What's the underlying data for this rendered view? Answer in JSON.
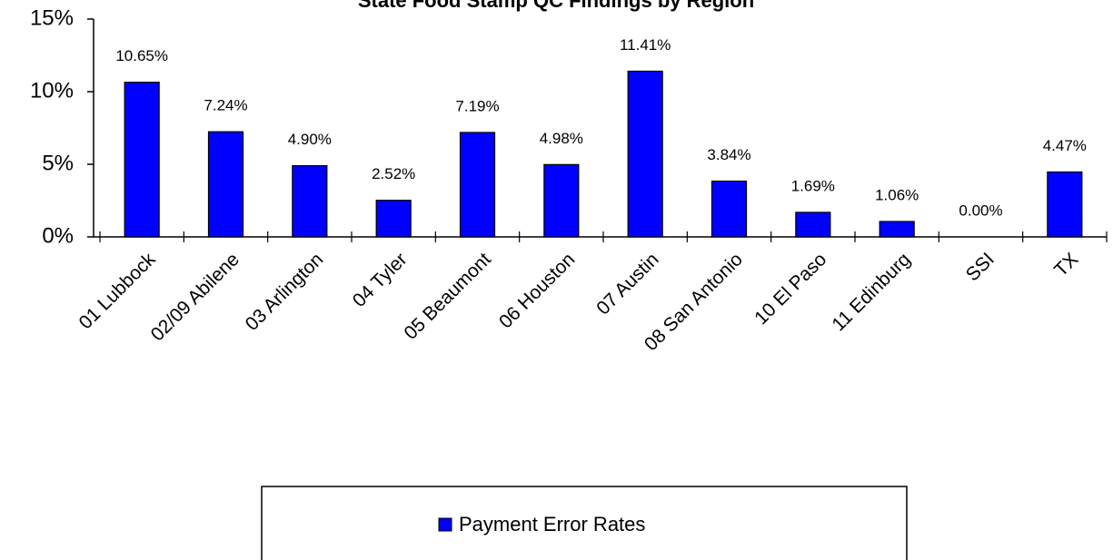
{
  "chart_data": {
    "type": "bar",
    "title": "State Food Stamp QC Findings by Region",
    "categories": [
      "01 Lubbock",
      "02/09 Abilene",
      "03 Arlington",
      "04 Tyler",
      "05 Beaumont",
      "06 Houston",
      "07 Austin",
      "08 San Antonio",
      "10 El Paso",
      "11 Edinburg",
      "SSI",
      "TX"
    ],
    "series": [
      {
        "name": "Payment Error Rates",
        "color": "#0000ff",
        "values": [
          10.65,
          7.24,
          4.9,
          2.52,
          7.19,
          4.98,
          11.41,
          3.84,
          1.69,
          1.06,
          0.0,
          4.47
        ],
        "value_labels": [
          "10.65%",
          "7.24%",
          "4.90%",
          "2.52%",
          "7.19%",
          "4.98%",
          "11.41%",
          "3.84%",
          "1.69%",
          "1.06%",
          "0.00%",
          "4.47%"
        ]
      }
    ],
    "ylim": [
      0,
      15
    ],
    "yticks": [
      {
        "value": 0,
        "label": "0%"
      },
      {
        "value": 5,
        "label": "5%"
      },
      {
        "value": 10,
        "label": "10%"
      },
      {
        "value": 15,
        "label": "15%"
      }
    ],
    "legend": "bottom"
  }
}
